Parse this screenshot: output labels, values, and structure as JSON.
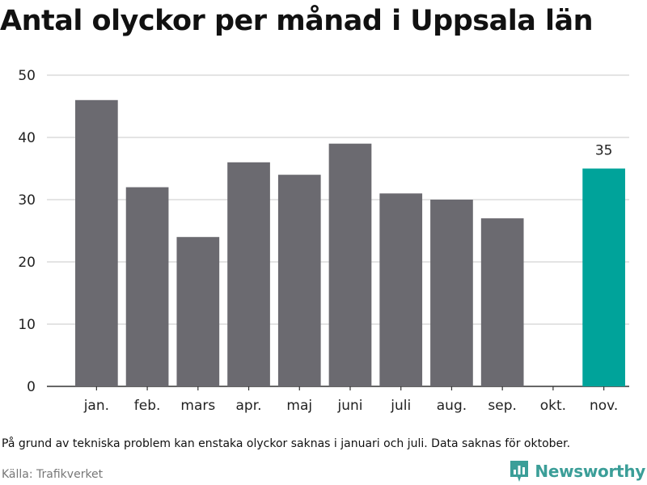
{
  "chart_data": {
    "type": "bar",
    "title": "Antal olyckor per månad i Uppsala län",
    "categories": [
      "jan.",
      "feb.",
      "mars",
      "apr.",
      "maj",
      "juni",
      "juli",
      "aug.",
      "sep.",
      "okt.",
      "nov."
    ],
    "values": [
      46,
      32,
      24,
      36,
      34,
      39,
      31,
      30,
      27,
      null,
      35
    ],
    "highlight_index": 10,
    "highlight_label": "35",
    "ylim": [
      0,
      50
    ],
    "yticks": [
      0,
      10,
      20,
      30,
      40,
      50
    ],
    "grid": true,
    "xlabel": "",
    "ylabel": "",
    "colors": {
      "bar": "#6b6a70",
      "highlight": "#00a39a",
      "grid": "#dcdcdc",
      "axis": "#333333"
    }
  },
  "footnote": "På grund av tekniska problem kan enstaka olyckor saknas i januari och juli. Data saknas för oktober.",
  "source": "Källa: Trafikverket",
  "brand": {
    "name": "Newsworthy",
    "icon": "bar-chart-logo-icon",
    "color": "#3b9e98"
  }
}
